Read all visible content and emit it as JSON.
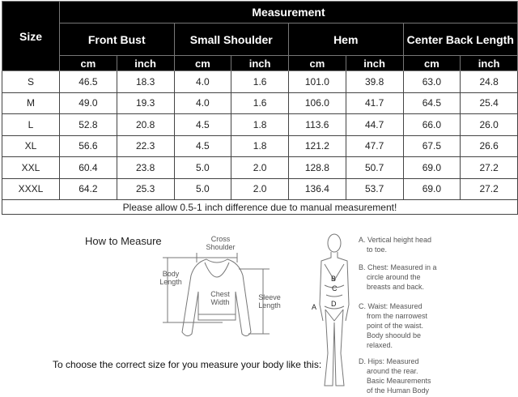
{
  "table": {
    "size_header": "Size",
    "measurement_header": "Measurement",
    "groups": [
      "Front Bust",
      "Small Shoulder",
      "Hem",
      "Center Back Length"
    ],
    "units": [
      "cm",
      "inch",
      "cm",
      "inch",
      "cm",
      "inch",
      "cm",
      "inch"
    ],
    "rows": [
      [
        "S",
        "46.5",
        "18.3",
        "4.0",
        "1.6",
        "101.0",
        "39.8",
        "63.0",
        "24.8"
      ],
      [
        "M",
        "49.0",
        "19.3",
        "4.0",
        "1.6",
        "106.0",
        "41.7",
        "64.5",
        "25.4"
      ],
      [
        "L",
        "52.8",
        "20.8",
        "4.5",
        "1.8",
        "113.6",
        "44.7",
        "66.0",
        "26.0"
      ],
      [
        "XL",
        "56.6",
        "22.3",
        "4.5",
        "1.8",
        "121.2",
        "47.7",
        "67.5",
        "26.6"
      ],
      [
        "XXL",
        "60.4",
        "23.8",
        "5.0",
        "2.0",
        "128.8",
        "50.7",
        "69.0",
        "27.2"
      ],
      [
        "XXXL",
        "64.2",
        "25.3",
        "5.0",
        "2.0",
        "136.4",
        "53.7",
        "69.0",
        "27.2"
      ]
    ],
    "note": "Please allow 0.5-1 inch difference due to manual measurement!"
  },
  "guide": {
    "title": "How to Measure",
    "garment_labels": {
      "cross_shoulder": "Cross Shoulder",
      "body_length": "Body Length",
      "chest_width": "Chest Width",
      "sleeve_length": "Sleeve Length"
    },
    "instruction": "To choose the correct size for you measure your body like this:",
    "body_markers": [
      "A",
      "B",
      "C",
      "D"
    ],
    "descriptions": [
      [
        "A. Vertical height head",
        "to toe."
      ],
      [
        "B. Chest: Measured in a",
        "circle around the",
        "breasts and back."
      ],
      [
        "C. Waist: Measured",
        "from the narrowest",
        "point of the waist.",
        "Body shoould be",
        "relaxed."
      ],
      [
        "D. Hips: Measured",
        "around the rear.",
        "Basic Meaurements",
        "of the Human Body"
      ]
    ]
  }
}
